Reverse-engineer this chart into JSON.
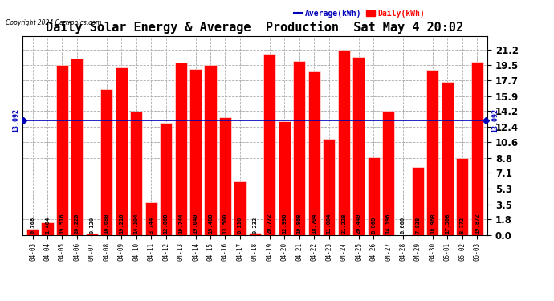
{
  "title": "Daily Solar Energy & Average  Production  Sat May 4 20:02",
  "copyright": "Copyright 2024 Cartronics.com",
  "legend_avg": "Average(kWh)",
  "legend_daily": "Daily(kWh)",
  "average_value": 13.092,
  "categories": [
    "04-03",
    "04-04",
    "04-05",
    "04-06",
    "04-07",
    "04-08",
    "04-09",
    "04-10",
    "04-11",
    "04-12",
    "04-13",
    "04-14",
    "04-15",
    "04-16",
    "04-17",
    "04-18",
    "04-19",
    "04-20",
    "04-21",
    "04-22",
    "04-23",
    "04-24",
    "04-25",
    "04-26",
    "04-27",
    "04-28",
    "04-29",
    "04-30",
    "05-01",
    "05-02",
    "05-03"
  ],
  "values": [
    0.708,
    1.404,
    19.516,
    20.22,
    0.12,
    16.688,
    19.216,
    14.104,
    3.744,
    12.868,
    19.744,
    19.04,
    19.488,
    13.5,
    6.116,
    0.232,
    20.772,
    12.996,
    19.968,
    18.704,
    11.004,
    21.228,
    20.44,
    8.868,
    14.196,
    0.0,
    7.828,
    18.968,
    17.508,
    8.772,
    19.872
  ],
  "bar_color": "#ff0000",
  "avg_line_color": "#0000bb",
  "title_color": "#000000",
  "copyright_color": "#000000",
  "legend_avg_color": "#0000bb",
  "legend_daily_color": "#ff0000",
  "yticks": [
    0.0,
    1.8,
    3.5,
    5.3,
    7.1,
    8.8,
    10.6,
    12.4,
    14.2,
    15.9,
    17.7,
    19.5,
    21.2
  ],
  "background_color": "#ffffff",
  "grid_color": "#aaaaaa",
  "bar_edge_color": "#ffffff",
  "value_fontsize": 5.0,
  "xtick_fontsize": 5.5,
  "ytick_fontsize": 8.5,
  "title_fontsize": 11,
  "ylim_max": 22.8
}
